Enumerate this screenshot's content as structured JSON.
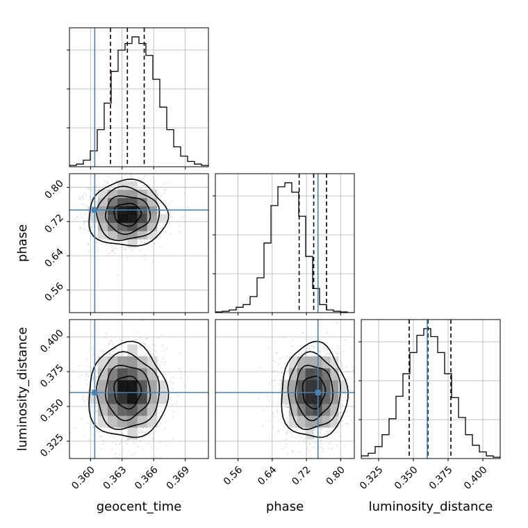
{
  "chart_data": {
    "type": "corner",
    "parameters": [
      "geocent_time",
      "phase",
      "luminosity_distance"
    ],
    "axis_labels": {
      "geocent_time": "geocent_time",
      "phase": "phase",
      "luminosity_distance": "luminosity_distance"
    },
    "ranges": {
      "geocent_time": [
        0.358,
        0.3712
      ],
      "phase": [
        0.507,
        0.832
      ],
      "luminosity_distance": [
        0.3125,
        0.4125
      ]
    },
    "ticks": {
      "geocent_time": {
        "values": [
          0.36,
          0.363,
          0.366,
          0.369
        ],
        "labels": [
          "0.360",
          "0.363",
          "0.366",
          "0.369"
        ]
      },
      "phase": {
        "values": [
          0.56,
          0.64,
          0.72,
          0.8
        ],
        "labels": [
          "0.56",
          "0.64",
          "0.72",
          "0.80"
        ]
      },
      "luminosity_distance": {
        "values": [
          0.325,
          0.35,
          0.375,
          0.4
        ],
        "labels": [
          "0.325",
          "0.350",
          "0.375",
          "0.400"
        ]
      }
    },
    "truths": {
      "geocent_time": 0.3604,
      "phase": 0.747,
      "luminosity_distance": 0.36
    },
    "quantiles": {
      "geocent_time": [
        0.3619,
        0.3635,
        0.3651
      ],
      "phase": [
        0.703,
        0.737,
        0.767
      ],
      "luminosity_distance": [
        0.347,
        0.3605,
        0.377
      ]
    },
    "medians": {
      "geocent_time": 0.3635,
      "phase": 0.737,
      "luminosity_distance": 0.3605
    },
    "stds": {
      "geocent_time": 0.0017,
      "phase": 0.035,
      "luminosity_distance": 0.0155
    },
    "histograms": {
      "geocent_time": [
        0.01,
        0.02,
        0.05,
        0.12,
        0.28,
        0.48,
        0.72,
        0.88,
        0.93,
        0.98,
        0.93,
        0.84,
        0.66,
        0.45,
        0.28,
        0.15,
        0.08,
        0.04,
        0.02,
        0.01
      ],
      "phase": [
        0.005,
        0.01,
        0.02,
        0.04,
        0.06,
        0.12,
        0.26,
        0.52,
        0.8,
        0.94,
        0.97,
        0.9,
        0.72,
        0.42,
        0.18,
        0.06,
        0.02,
        0.01,
        0.005,
        0.0
      ],
      "luminosity_distance": [
        0.02,
        0.04,
        0.09,
        0.18,
        0.3,
        0.47,
        0.64,
        0.8,
        0.93,
        0.98,
        0.92,
        0.8,
        0.64,
        0.46,
        0.31,
        0.18,
        0.1,
        0.05,
        0.02,
        0.01
      ]
    },
    "grid": true,
    "colors": {
      "truth": "#4682b4",
      "hist": "#000000",
      "quantile": "#000000",
      "points": "#9a9a9a"
    }
  }
}
